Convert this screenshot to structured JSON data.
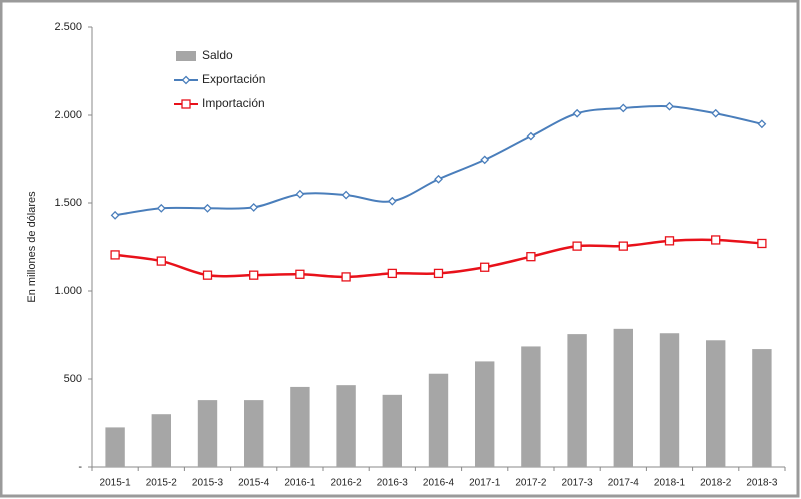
{
  "chart_data": {
    "type": "bar-line",
    "ylabel": "En millones de dólares",
    "categories": [
      "2015-1",
      "2015-2",
      "2015-3",
      "2015-4",
      "2016-1",
      "2016-2",
      "2016-3",
      "2016-4",
      "2017-1",
      "2017-2",
      "2017-3",
      "2017-4",
      "2018-1",
      "2018-2",
      "2018-3"
    ],
    "series": [
      {
        "name": "Saldo",
        "type": "bar",
        "color": "#a6a6a6",
        "values": [
          225,
          300,
          380,
          380,
          455,
          465,
          410,
          530,
          600,
          685,
          755,
          785,
          760,
          720,
          670
        ]
      },
      {
        "name": "Exportación",
        "type": "line",
        "marker": "diamond",
        "color": "#4a7ebb",
        "values": [
          1430,
          1470,
          1470,
          1475,
          1550,
          1545,
          1510,
          1635,
          1745,
          1880,
          2010,
          2040,
          2050,
          2010,
          1950
        ]
      },
      {
        "name": "Importación",
        "type": "line",
        "marker": "square",
        "color": "#e8111a",
        "values": [
          1205,
          1170,
          1090,
          1090,
          1095,
          1080,
          1100,
          1100,
          1135,
          1195,
          1255,
          1255,
          1285,
          1290,
          1270
        ]
      }
    ],
    "ylim": [
      0,
      2500
    ],
    "yticks": [
      {
        "value": 0,
        "label": "-"
      },
      500,
      {
        "value": 1000,
        "label": "1.000"
      },
      {
        "value": 1500,
        "label": "1.500"
      },
      {
        "value": 2000,
        "label": "2.000"
      },
      {
        "value": 2500,
        "label": "2.500"
      }
    ],
    "grid": false,
    "legend": "top-left"
  }
}
